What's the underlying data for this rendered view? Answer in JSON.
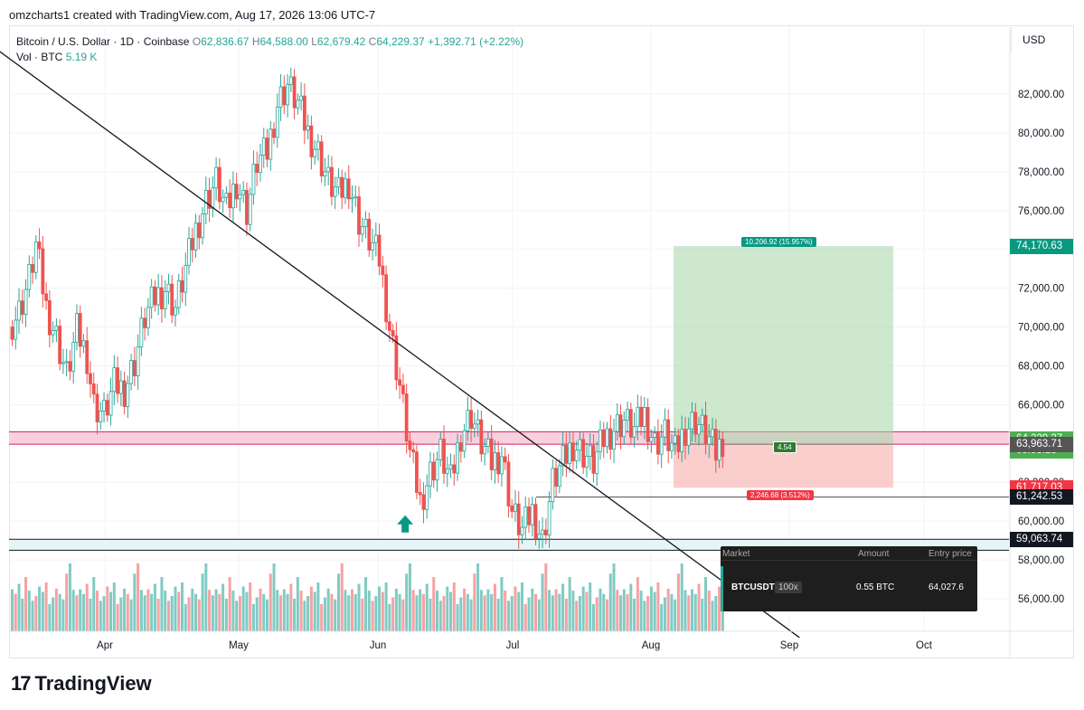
{
  "header": {
    "text": "omzcharts1 created with TradingView.com, Aug 17, 2026 13:06 UTC-7"
  },
  "legend": {
    "symbol": "Bitcoin / U.S. Dollar · 1D · Coinbase",
    "open_label": "O",
    "open": "62,836.67",
    "high_label": "H",
    "high": "64,588.00",
    "low_label": "L",
    "low": "62,679.42",
    "close_label": "C",
    "close": "64,229.37",
    "change": "+1,392.71 (+2.22%)",
    "vol_label": "Vol · BTC",
    "vol": "5.19 K"
  },
  "currency": "USD",
  "brand": "TradingView",
  "position_panel": {
    "col_market": "Market",
    "col_amount": "Amount",
    "col_entry": "Entry price",
    "symbol": "BTCUSDT",
    "leverage": "100x",
    "amount": "0.55 BTC",
    "entry": "64,027.6"
  },
  "price_labels": [
    {
      "text": "74,170.63",
      "color": "#089981"
    },
    {
      "text": "64,229.37",
      "color": "#4caf50"
    },
    {
      "text": "03:53:28",
      "color": "#4caf50"
    },
    {
      "text": "63,963.71",
      "color": "#555555"
    },
    {
      "text": "61,717.03",
      "color": "#f23645"
    },
    {
      "text": "61,242.53",
      "color": "#131722"
    },
    {
      "text": "59,063.74",
      "color": "#131722"
    }
  ],
  "position_tags": {
    "target": "10,206.92 (15.957%)",
    "stop": "2,246.68 (3.512%)",
    "ratio": "4.54"
  },
  "chart_data": {
    "type": "candlestick",
    "title": "Bitcoin / U.S. Dollar · 1D · Coinbase",
    "y_axis": {
      "ticks": [
        56000,
        58000,
        60000,
        62000,
        64000,
        66000,
        68000,
        70000,
        72000,
        74000,
        76000,
        78000,
        80000,
        82000
      ],
      "ylim": [
        54000,
        84500
      ]
    },
    "x_axis": {
      "ticks": [
        "Apr",
        "May",
        "Jun",
        "Jul",
        "Aug",
        "Sep",
        "Oct"
      ]
    },
    "candle_close_path": [
      [
        0,
        70000
      ],
      [
        3,
        70800
      ],
      [
        6,
        72500
      ],
      [
        8,
        74200
      ],
      [
        11,
        71000
      ],
      [
        14,
        69500
      ],
      [
        17,
        67500
      ],
      [
        20,
        69800
      ],
      [
        23,
        68500
      ],
      [
        25,
        66000
      ],
      [
        28,
        65500
      ],
      [
        31,
        67000
      ],
      [
        34,
        66800
      ],
      [
        37,
        68200
      ],
      [
        40,
        70500
      ],
      [
        43,
        71500
      ],
      [
        46,
        72000
      ],
      [
        49,
        71000
      ],
      [
        52,
        73000
      ],
      [
        55,
        75000
      ],
      [
        58,
        76500
      ],
      [
        61,
        77500
      ],
      [
        64,
        76000
      ],
      [
        67,
        77500
      ],
      [
        70,
        76000
      ],
      [
        73,
        78500
      ],
      [
        76,
        79000
      ],
      [
        79,
        81500
      ],
      [
        82,
        82500
      ],
      [
        85,
        81500
      ],
      [
        88,
        80000
      ],
      [
        91,
        79000
      ],
      [
        94,
        77500
      ],
      [
        97,
        76800
      ],
      [
        100,
        77500
      ],
      [
        103,
        75500
      ],
      [
        106,
        74500
      ],
      [
        109,
        73500
      ],
      [
        112,
        70000
      ],
      [
        115,
        67000
      ],
      [
        118,
        63500
      ],
      [
        121,
        61000
      ],
      [
        124,
        62500
      ],
      [
        127,
        63500
      ],
      [
        130,
        62000
      ],
      [
        133,
        64500
      ],
      [
        136,
        65500
      ],
      [
        139,
        64000
      ],
      [
        142,
        63000
      ],
      [
        145,
        63500
      ],
      [
        148,
        60500
      ],
      [
        151,
        59500
      ],
      [
        154,
        60500
      ],
      [
        157,
        59000
      ],
      [
        160,
        62000
      ],
      [
        163,
        63000
      ],
      [
        166,
        64000
      ],
      [
        169,
        63500
      ],
      [
        172,
        63000
      ],
      [
        175,
        64200
      ],
      [
        178,
        64800
      ],
      [
        181,
        65200
      ],
      [
        184,
        64700
      ],
      [
        187,
        65500
      ],
      [
        190,
        64000
      ],
      [
        193,
        64500
      ],
      [
        196,
        63500
      ],
      [
        199,
        64800
      ],
      [
        202,
        65200
      ],
      [
        205,
        64500
      ],
      [
        208,
        63500
      ],
      [
        210,
        64229
      ]
    ],
    "volume_series": [
      62,
      55,
      70,
      48,
      80,
      60,
      45,
      52,
      66,
      58,
      72,
      40,
      50,
      63,
      55,
      47,
      85,
      100,
      61,
      53
    ],
    "annotations": {
      "trendline_start": [
        -8,
        84800
      ],
      "trendline_end": [
        232,
        54000
      ],
      "resistance_zone": [
        63960,
        64600
      ],
      "support_zone": [
        58500,
        59064
      ],
      "long_position": {
        "entry": 63963.71,
        "target": 74170.63,
        "stop": 61717.03
      },
      "horizontal_line": 61242.53,
      "up_arrow_at": [
        116,
        60300
      ]
    }
  }
}
